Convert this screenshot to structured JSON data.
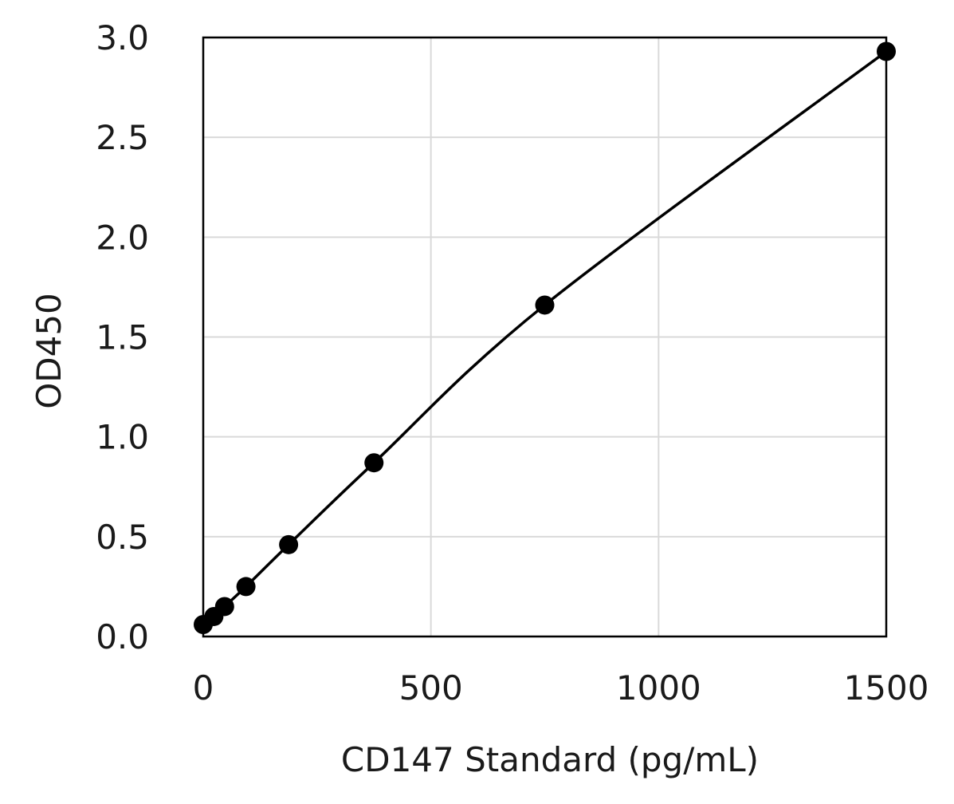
{
  "chart_data": {
    "type": "scatter",
    "title": "",
    "xlabel": "CD147 Standard (pg/mL)",
    "ylabel": "OD450",
    "xlim": [
      0,
      1500
    ],
    "ylim": [
      0,
      3.0
    ],
    "xticks": [
      0,
      500,
      1000,
      1500
    ],
    "yticks": [
      0.0,
      0.5,
      1.0,
      1.5,
      2.0,
      2.5,
      3.0
    ],
    "xtick_labels": [
      "0",
      "500",
      "1000",
      "1500"
    ],
    "ytick_labels": [
      "0.0",
      "0.5",
      "1.0",
      "1.5",
      "2.0",
      "2.5",
      "3.0"
    ],
    "grid": true,
    "legend": "none",
    "series": [
      {
        "x": [
          0,
          23.4,
          46.9,
          93.8,
          187.5,
          375,
          750,
          1500
        ],
        "y": [
          0.06,
          0.1,
          0.15,
          0.25,
          0.46,
          0.87,
          1.66,
          2.93
        ],
        "marker": "circle",
        "fit_line": "smooth",
        "color": "#000000"
      }
    ],
    "colors": {
      "grid": "#d9d9d9",
      "frame": "#000000",
      "marker": "#000000",
      "line": "#000000"
    }
  }
}
